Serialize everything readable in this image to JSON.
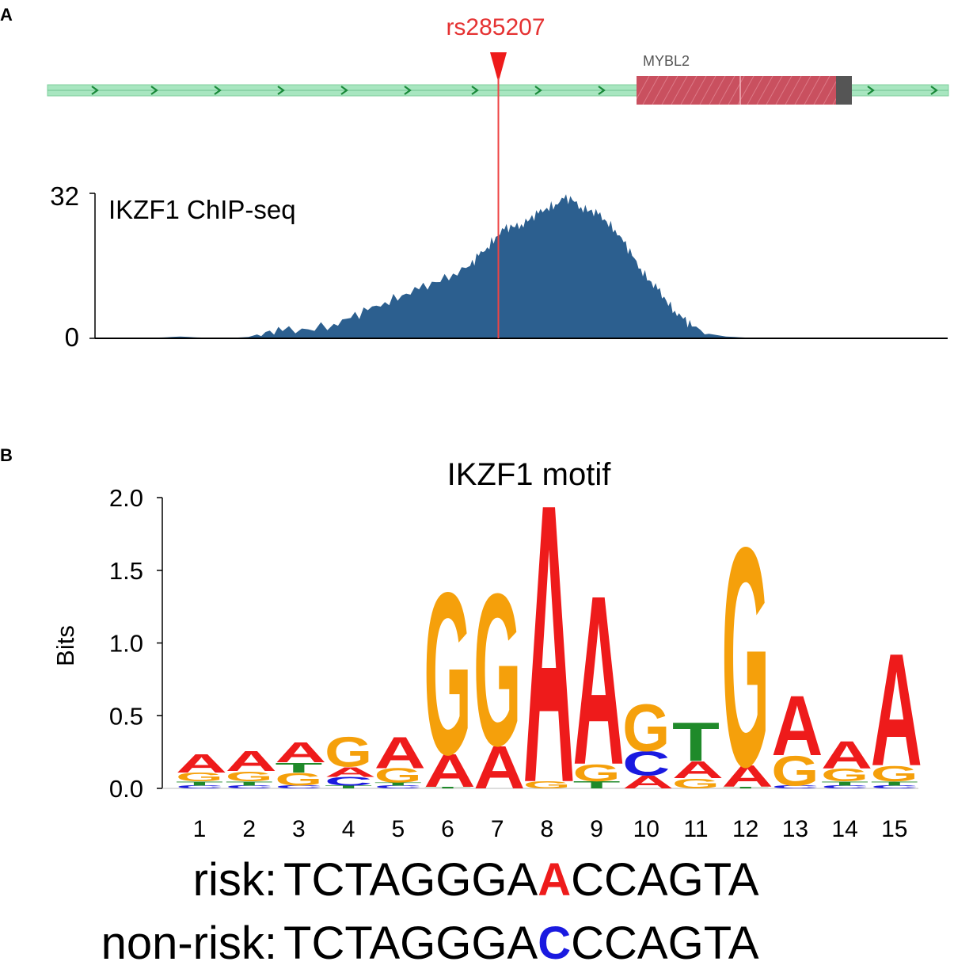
{
  "panel_a_label": "A",
  "panel_b_label": "B",
  "snp": {
    "label": "rs285207",
    "color": "#e53232"
  },
  "gene": {
    "name": "MYBL2",
    "exon_color": "#c9505f",
    "track_color": "#a8e6c0",
    "arrow_color": "#1a8a3a"
  },
  "chart_data": [
    {
      "type": "area",
      "title": "IKZF1 ChIP-seq",
      "ylim": [
        0,
        32
      ],
      "yticks": [
        "32",
        "0"
      ],
      "fill_color": "#2c5f8f",
      "x": [
        0,
        0.04,
        0.08,
        0.1,
        0.12,
        0.15,
        0.18,
        0.2,
        0.22,
        0.25,
        0.28,
        0.3,
        0.32,
        0.34,
        0.36,
        0.38,
        0.4,
        0.42,
        0.44,
        0.45,
        0.46,
        0.47,
        0.48,
        0.49,
        0.5,
        0.51,
        0.52,
        0.53,
        0.54,
        0.55,
        0.56,
        0.57,
        0.58,
        0.59,
        0.6,
        0.61,
        0.62,
        0.63,
        0.64,
        0.65,
        0.66,
        0.67,
        0.68,
        0.69,
        0.7,
        0.72,
        0.74,
        0.76,
        0.78,
        0.8,
        0.83,
        0.86,
        0.9,
        0.95,
        1.0
      ],
      "y": [
        0,
        0,
        0.2,
        0.4,
        0.2,
        0,
        0.3,
        1.4,
        1.6,
        2.0,
        3.2,
        4.5,
        6.2,
        8.0,
        9.5,
        10.8,
        12.4,
        14.3,
        16.0,
        18.2,
        20.1,
        22.4,
        24.0,
        24.6,
        25.2,
        26.3,
        27.5,
        28.8,
        29.6,
        30.8,
        30.5,
        29.0,
        28.2,
        27.3,
        25.8,
        24.0,
        21.2,
        18.2,
        15.4,
        12.8,
        10.7,
        8.3,
        6.1,
        4.3,
        2.6,
        1.0,
        0.4,
        0.2,
        0.05,
        0,
        0,
        0,
        0,
        0,
        0
      ]
    },
    {
      "type": "sequence_logo",
      "title": "IKZF1 motif",
      "ylabel": "Bits",
      "ylim": [
        0,
        2.0
      ],
      "yticks": [
        "0.0",
        "0.5",
        "1.0",
        "1.5",
        "2.0"
      ],
      "categories": [
        "1",
        "2",
        "3",
        "4",
        "5",
        "6",
        "7",
        "8",
        "9",
        "10",
        "11",
        "12",
        "13",
        "14",
        "15"
      ],
      "colors": {
        "A": "#ee1b1b",
        "C": "#1a1ae0",
        "G": "#f5a00b",
        "T": "#1f8a2a"
      },
      "positions": [
        [
          [
            "C",
            0.02
          ],
          [
            "T",
            0.03
          ],
          [
            "G",
            0.06
          ],
          [
            "A",
            0.13
          ]
        ],
        [
          [
            "C",
            0.02
          ],
          [
            "T",
            0.03
          ],
          [
            "G",
            0.07
          ],
          [
            "A",
            0.14
          ]
        ],
        [
          [
            "C",
            0.02
          ],
          [
            "G",
            0.09
          ],
          [
            "T",
            0.07
          ],
          [
            "A",
            0.14
          ]
        ],
        [
          [
            "T",
            0.02
          ],
          [
            "C",
            0.06
          ],
          [
            "A",
            0.07
          ],
          [
            "G",
            0.21
          ]
        ],
        [
          [
            "C",
            0.02
          ],
          [
            "T",
            0.02
          ],
          [
            "G",
            0.1
          ],
          [
            "A",
            0.22
          ]
        ],
        [
          [
            "T",
            0.01
          ],
          [
            "A",
            0.23
          ],
          [
            "G",
            1.14
          ]
        ],
        [
          [
            "A",
            0.3
          ],
          [
            "G",
            1.07
          ]
        ],
        [
          [
            "G",
            0.05
          ],
          [
            "A",
            1.96
          ]
        ],
        [
          [
            "T",
            0.05
          ],
          [
            "G",
            0.12
          ],
          [
            "A",
            1.19
          ]
        ],
        [
          [
            "A",
            0.09
          ],
          [
            "C",
            0.17
          ],
          [
            "G",
            0.33
          ]
        ],
        [
          [
            "G",
            0.07
          ],
          [
            "A",
            0.12
          ],
          [
            "T",
            0.27
          ]
        ],
        [
          [
            "T",
            0.01
          ],
          [
            "A",
            0.15
          ],
          [
            "G",
            1.54
          ]
        ],
        [
          [
            "C",
            0.02
          ],
          [
            "G",
            0.21
          ],
          [
            "A",
            0.42
          ]
        ],
        [
          [
            "C",
            0.02
          ],
          [
            "T",
            0.03
          ],
          [
            "G",
            0.09
          ],
          [
            "A",
            0.19
          ]
        ],
        [
          [
            "C",
            0.02
          ],
          [
            "T",
            0.03
          ],
          [
            "G",
            0.11
          ],
          [
            "A",
            0.79
          ]
        ]
      ],
      "risk_label": "risk:",
      "risk_seq": "TCTAGGGAACCAGTA",
      "nonrisk_label": "non-risk:",
      "nonrisk_seq": "TCTAGGGACCCAGTA",
      "variant_index": 8,
      "risk_allele_color": "#ee1b1b",
      "nonrisk_allele_color": "#1a1ae0"
    }
  ]
}
